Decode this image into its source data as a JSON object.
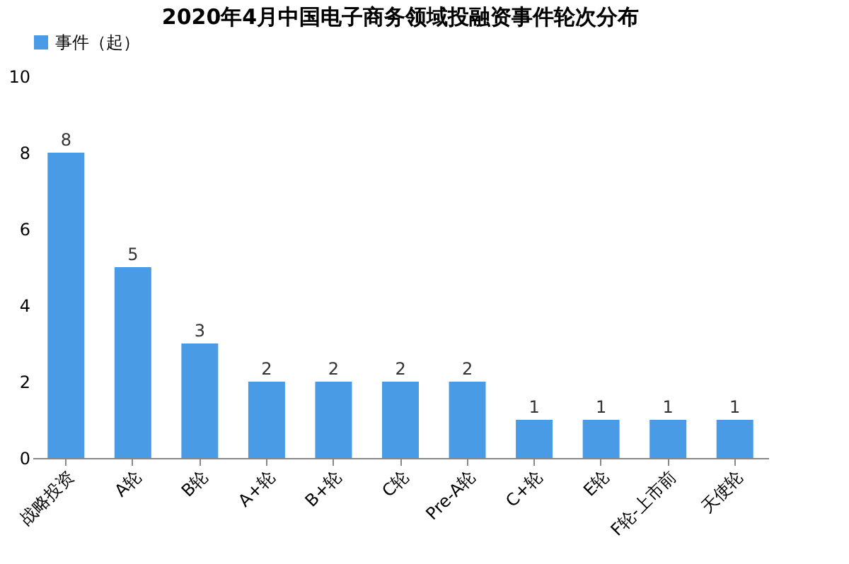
{
  "chart_data": {
    "type": "bar",
    "title": "2020年4月中国电子商务领域投融资事件轮次分布",
    "categories": [
      "战略投资",
      "A轮",
      "B轮",
      "A+轮",
      "B+轮",
      "C轮",
      "Pre-A轮",
      "C+轮",
      "E轮",
      "F轮-上市前",
      "天使轮"
    ],
    "series": [
      {
        "name": "事件（起）",
        "color": "#4a9be6",
        "values": [
          8,
          5,
          3,
          2,
          2,
          2,
          2,
          1,
          1,
          1,
          1
        ]
      }
    ],
    "ylim": [
      0,
      10
    ],
    "yticks": [
      0,
      2,
      4,
      6,
      8,
      10
    ],
    "grid": false,
    "legend": "top",
    "data_labels": true
  }
}
